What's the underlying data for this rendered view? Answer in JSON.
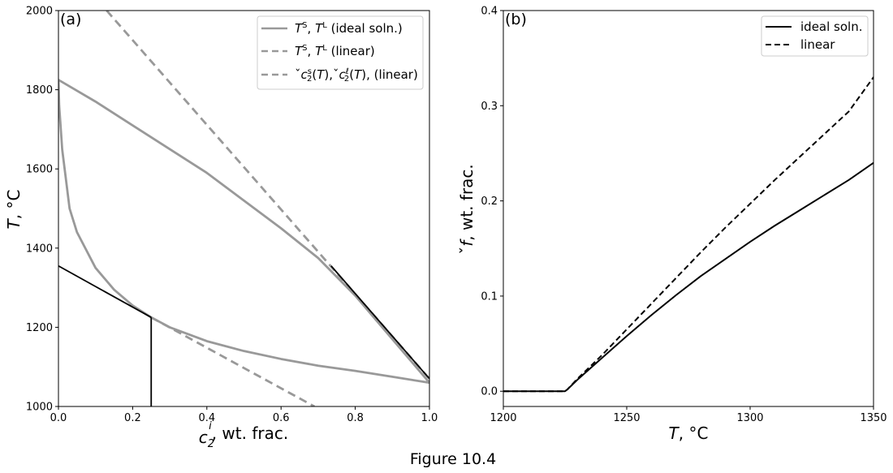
{
  "caption": "Figure 10.4",
  "chart_data": [
    {
      "panel": "(a)",
      "type": "line",
      "xlabel": "c2i, wt. frac.",
      "ylabel": "T, °C",
      "xlim": [
        0,
        1.0
      ],
      "ylim": [
        1000,
        2000
      ],
      "xticks": [
        "0.0",
        "0.2",
        "0.4",
        "0.6",
        "0.8",
        "1.0"
      ],
      "yticks": [
        "1000",
        "1200",
        "1400",
        "1600",
        "1800",
        "2000"
      ],
      "legend": {
        "placement": "top-right",
        "entries": [
          {
            "label": "TS, TL (ideal soln.)",
            "style": "solid",
            "color": "#999999"
          },
          {
            "label": "TS, TL (linear)",
            "style": "dashed",
            "color": "#999999"
          },
          {
            "label": "ˇc2s(T),ˇc2ℓ(T), (linear)",
            "style": "dashed",
            "color": "#999999"
          }
        ]
      },
      "series": [
        {
          "key": "ideal_liquidus",
          "style": "solid",
          "color": "#999999",
          "x": [
            0.0,
            0.1,
            0.2,
            0.3,
            0.4,
            0.5,
            0.6,
            0.7,
            0.8,
            0.9,
            1.0
          ],
          "y": [
            1825,
            1770,
            1710,
            1650,
            1590,
            1520,
            1450,
            1375,
            1280,
            1170,
            1060
          ]
        },
        {
          "key": "ideal_solidus",
          "style": "solid",
          "color": "#999999",
          "x": [
            0.0,
            0.002,
            0.01,
            0.03,
            0.05,
            0.1,
            0.15,
            0.2,
            0.25,
            0.3,
            0.4,
            0.5,
            0.6,
            0.7,
            0.8,
            0.9,
            1.0
          ],
          "y": [
            1825,
            1760,
            1650,
            1500,
            1440,
            1350,
            1295,
            1255,
            1225,
            1200,
            1165,
            1140,
            1120,
            1103,
            1090,
            1075,
            1060
          ]
        },
        {
          "key": "linear_liquidus",
          "style": "dashed",
          "color": "#999999",
          "x": [
            0.13,
            1.0
          ],
          "y": [
            2000,
            1070
          ]
        },
        {
          "key": "linear_solidus",
          "style": "dashed",
          "color": "#999999",
          "x": [
            0.25,
            0.69
          ],
          "y": [
            1225,
            1000
          ]
        },
        {
          "key": "solidus_tangent",
          "style": "solid",
          "color": "#000000",
          "x": [
            0.0,
            0.25
          ],
          "y": [
            1355,
            1225
          ]
        },
        {
          "key": "concentration_marker",
          "style": "solid",
          "color": "#000000",
          "x": [
            0.25,
            0.25
          ],
          "y": [
            1225,
            1000
          ]
        },
        {
          "key": "liquidus_tangent",
          "style": "solid",
          "color": "#000000",
          "x": [
            0.735,
            1.0
          ],
          "y": [
            1355,
            1070
          ]
        }
      ]
    },
    {
      "panel": "(b)",
      "type": "line",
      "xlabel": "T, °C",
      "ylabel": "ˇf, wt. frac.",
      "xlim": [
        1200,
        1350
      ],
      "ylim": [
        -0.016,
        0.4
      ],
      "xticks": [
        "1200",
        "1250",
        "1300",
        "1350"
      ],
      "yticks": [
        "0.0",
        "0.1",
        "0.2",
        "0.3",
        "0.4"
      ],
      "legend": {
        "placement": "top-right",
        "entries": [
          {
            "label": "ideal soln.",
            "style": "solid",
            "color": "#000000"
          },
          {
            "label": "linear",
            "style": "dashed",
            "color": "#000000"
          }
        ]
      },
      "series": [
        {
          "name": "ideal soln.",
          "style": "solid",
          "color": "#000000",
          "x": [
            1200,
            1225,
            1226,
            1230,
            1240,
            1250,
            1260,
            1270,
            1280,
            1290,
            1300,
            1310,
            1320,
            1330,
            1340,
            1350
          ],
          "y": [
            0,
            0,
            0.002,
            0.012,
            0.035,
            0.058,
            0.08,
            0.101,
            0.121,
            0.139,
            0.157,
            0.174,
            0.19,
            0.206,
            0.222,
            0.24
          ]
        },
        {
          "name": "linear",
          "style": "dashed",
          "color": "#000000",
          "x": [
            1200,
            1225,
            1226,
            1230,
            1240,
            1250,
            1260,
            1270,
            1280,
            1290,
            1300,
            1310,
            1320,
            1330,
            1340,
            1350
          ],
          "y": [
            0,
            0,
            0.002,
            0.013,
            0.038,
            0.065,
            0.092,
            0.119,
            0.146,
            0.172,
            0.197,
            0.222,
            0.246,
            0.27,
            0.294,
            0.33
          ]
        }
      ]
    }
  ]
}
